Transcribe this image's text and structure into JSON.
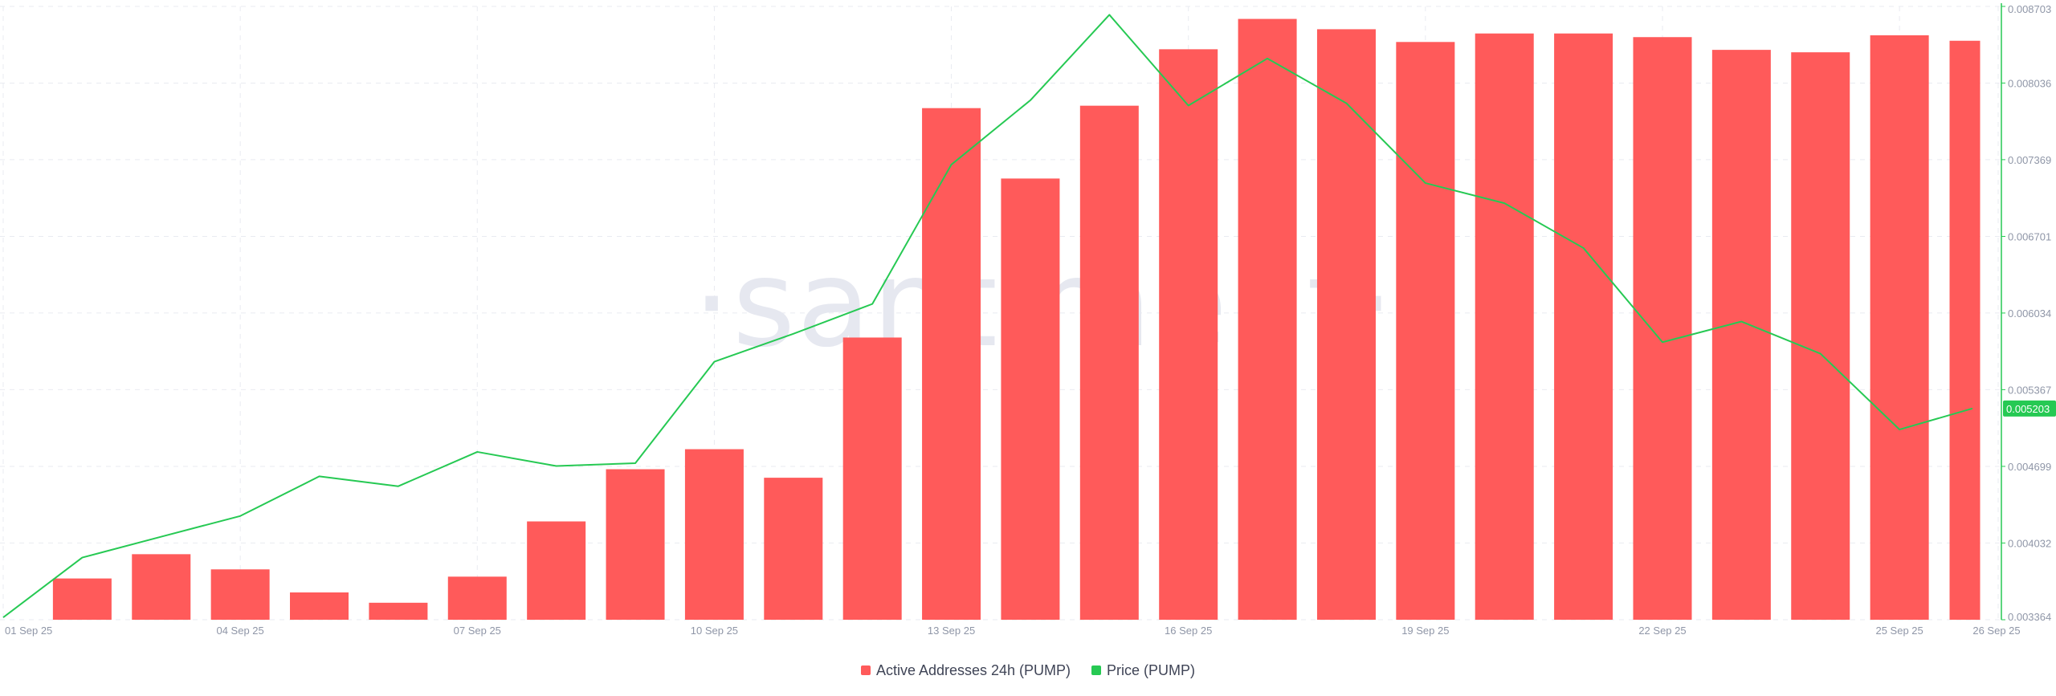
{
  "watermark": "·santiment·",
  "colors": {
    "bars": "#ff5a5a",
    "price": "#26c953",
    "grid": "#e9ebf1",
    "axis_text": "#8f96a7",
    "price_axis": "#26c953"
  },
  "legend": [
    {
      "label": "Active Addresses 24h (PUMP)",
      "color": "#ff5a5a"
    },
    {
      "label": "Price (PUMP)",
      "color": "#26c953"
    }
  ],
  "chart_data": {
    "type": "bar",
    "x": [
      "01 Sep 25",
      "02 Sep 25",
      "03 Sep 25",
      "04 Sep 25",
      "05 Sep 25",
      "06 Sep 25",
      "07 Sep 25",
      "08 Sep 25",
      "09 Sep 25",
      "10 Sep 25",
      "11 Sep 25",
      "12 Sep 25",
      "13 Sep 25",
      "14 Sep 25",
      "15 Sep 25",
      "16 Sep 25",
      "17 Sep 25",
      "18 Sep 25",
      "19 Sep 25",
      "20 Sep 25",
      "21 Sep 25",
      "22 Sep 25",
      "23 Sep 25",
      "24 Sep 25",
      "25 Sep 25",
      "26 Sep 25"
    ],
    "x_tick_labels": [
      "01 Sep 25",
      "04 Sep 25",
      "07 Sep 25",
      "10 Sep 25",
      "13 Sep 25",
      "16 Sep 25",
      "19 Sep 25",
      "22 Sep 25",
      "25 Sep 25",
      "26 Sep 25"
    ],
    "series": [
      {
        "name": "Active Addresses 24h (PUMP)",
        "type": "bar",
        "relative_values": [
          0.035,
          0.068,
          0.108,
          0.083,
          0.045,
          0.028,
          0.071,
          0.162,
          0.248,
          0.281,
          0.234,
          0.465,
          0.843,
          0.727,
          0.847,
          0.94,
          0.99,
          0.973,
          0.952,
          0.966,
          0.966,
          0.96,
          0.939,
          0.935,
          0.963,
          0.954
        ]
      },
      {
        "name": "Price (PUMP)",
        "type": "line",
        "values": [
          0.003384,
          0.003905,
          0.004087,
          0.004267,
          0.004612,
          0.004526,
          0.004825,
          0.004702,
          0.004727,
          0.00561,
          0.005853,
          0.006113,
          0.007326,
          0.007886,
          0.00863,
          0.00784,
          0.00825,
          0.00786,
          0.007165,
          0.00699,
          0.0066,
          0.00578,
          0.00596,
          0.00568,
          0.00502,
          0.005203
        ]
      }
    ],
    "y_right": {
      "ticks": [
        "0.003364",
        "0.004032",
        "0.004699",
        "0.005367",
        "0.006034",
        "0.006701",
        "0.007369",
        "0.008036",
        "0.008703"
      ],
      "min": 0.003364,
      "max": 0.008703,
      "current_value": "0.005203"
    },
    "grid": true,
    "legend_position": "bottom-center"
  }
}
